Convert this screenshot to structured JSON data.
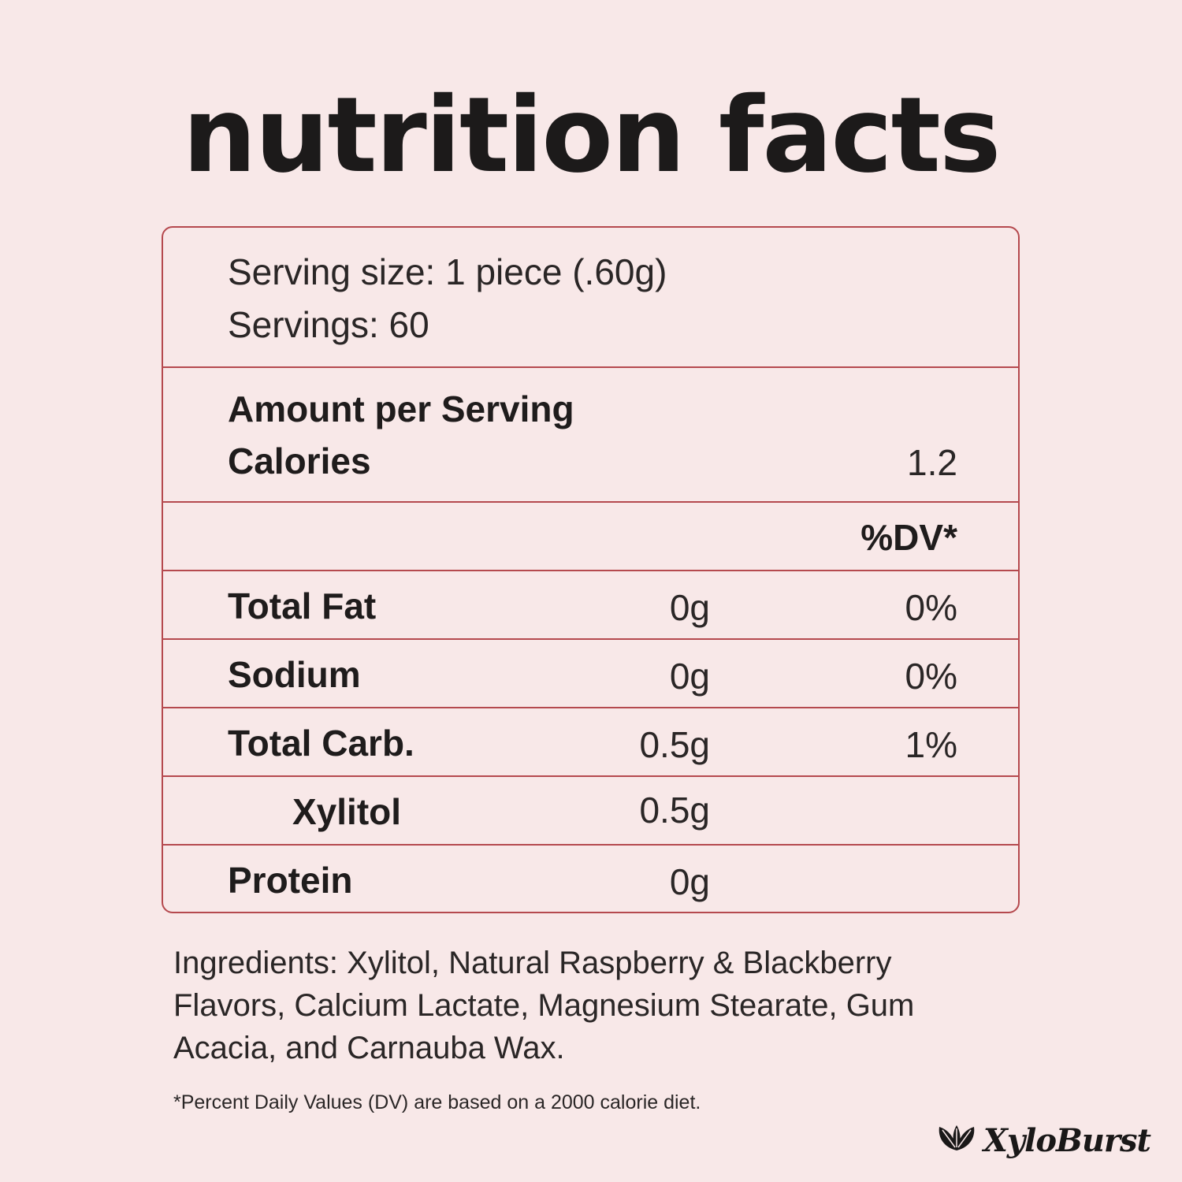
{
  "title": "nutrition facts",
  "serving": {
    "size": "Serving size: 1 piece (.60g)",
    "servings": "Servings: 60"
  },
  "amount": {
    "heading": "Amount per Serving",
    "calories_label": "Calories",
    "calories_value": "1.2"
  },
  "dv_header": "%DV*",
  "nutrients": [
    {
      "label": "Total Fat",
      "amount": "0g",
      "dv": "0%"
    },
    {
      "label": "Sodium",
      "amount": "0g",
      "dv": "0%"
    },
    {
      "label": "Total Carb.",
      "amount": "0.5g",
      "dv": "1%"
    },
    {
      "label": "Xylitol",
      "amount": "0.5g",
      "dv": ""
    },
    {
      "label": "Protein",
      "amount": "0g",
      "dv": ""
    }
  ],
  "ingredients": "Ingredients: Xylitol, Natural Raspberry & Blackberry Flavors, Calcium Lactate, Magnesium Stearate, Gum Acacia, and Carnauba Wax.",
  "footnote": "*Percent Daily Values (DV) are based on a 2000 calorie diet.",
  "brand": {
    "name": "XyloBurst",
    "icon": "leaf-icon"
  },
  "colors": {
    "background": "#f8e8e8",
    "border": "#b5494e",
    "text": "#231f1f"
  }
}
